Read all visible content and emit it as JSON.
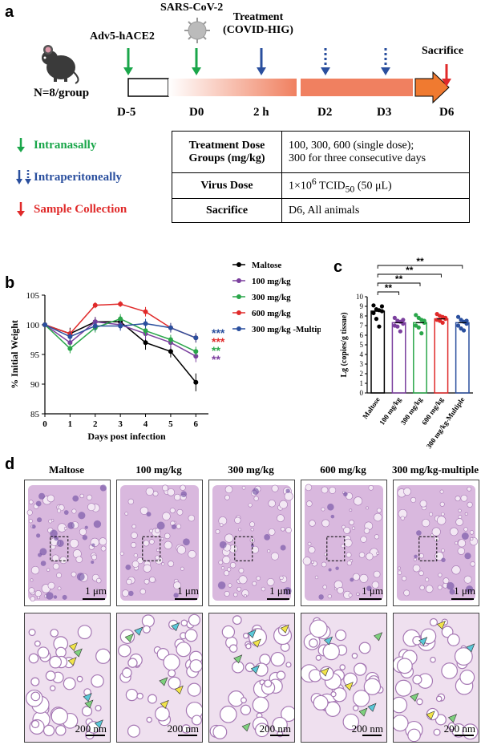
{
  "panel_a": {
    "letter": "a",
    "group_label": "N=8/group",
    "events": [
      {
        "name": "Adv5-hACE2",
        "day": "D-5",
        "color": "#1aa64a",
        "style": "solid"
      },
      {
        "name": "SARS-CoV-2",
        "day": "D0",
        "color": "#1aa64a",
        "style": "solid"
      },
      {
        "name": "Treatment (COVID-HIG)",
        "day": "2 h",
        "color": "#2a4f9e",
        "style": "solid"
      },
      {
        "name": "",
        "day": "D2",
        "color": "#2a4f9e",
        "style": "dotted"
      },
      {
        "name": "",
        "day": "D3",
        "color": "#2a4f9e",
        "style": "dotted"
      },
      {
        "name": "Sacrifice",
        "day": "D6",
        "color": "#e02a2a",
        "style": "solid"
      }
    ],
    "adv_label": "Adv5-hACE2",
    "sars_label": "SARS-CoV-2",
    "treat_label_1": "Treatment",
    "treat_label_2": "(COVID-HIG)",
    "sacrifice_label": "Sacrifice",
    "days": [
      "D-5",
      "D0",
      "2 h",
      "D2",
      "D3",
      "D6"
    ],
    "legend": [
      {
        "label": "Intranasally",
        "color": "#1aa64a"
      },
      {
        "label": "Intraperitoneally",
        "color": "#2a4f9e"
      },
      {
        "label": "Sample Collection",
        "color": "#e02a2a"
      }
    ],
    "table": {
      "r1h1": "Treatment Dose",
      "r1h2": "Groups (mg/kg)",
      "r1v1": "100, 300, 600 (single dose);",
      "r1v2": "300 for three consecutive days",
      "r2h": "Virus Dose",
      "r2v_a": "1×10",
      "r2v_sup": "6",
      "r2v_b": " TCID",
      "r2v_sub": "50",
      "r2v_c": " (50 μL)",
      "r3h": "Sacrifice",
      "r3v": "D6, All animals"
    }
  },
  "panel_b": {
    "letter": "b",
    "chart_data": {
      "type": "line",
      "title": "",
      "xlabel": "Days post infection",
      "ylabel": "% Initial Weight",
      "x": [
        0,
        1,
        2,
        3,
        4,
        5,
        6
      ],
      "xlim": [
        0,
        6.5
      ],
      "ylim": [
        85,
        105
      ],
      "yticks": [
        85,
        90,
        95,
        100,
        105
      ],
      "series": [
        {
          "name": "Maltose",
          "color": "#000000",
          "values": [
            100,
            98.5,
            100.5,
            100.5,
            97,
            95.5,
            90.3
          ],
          "errors": [
            0,
            1,
            0.8,
            1,
            1.2,
            1,
            1.5
          ]
        },
        {
          "name": "100 mg/kg",
          "color": "#7b3f9e",
          "values": [
            100,
            97,
            100.5,
            100,
            98.5,
            97,
            94.7
          ],
          "errors": [
            0,
            1,
            0.8,
            0.8,
            1,
            1,
            1
          ]
        },
        {
          "name": "300 mg/kg",
          "color": "#2aa64a",
          "values": [
            100,
            96,
            99.5,
            101,
            99,
            97.5,
            95.5
          ],
          "errors": [
            0,
            0.8,
            0.8,
            0.8,
            0.8,
            0.8,
            0.8
          ]
        },
        {
          "name": "600 mg/kg",
          "color": "#e02a2a",
          "values": [
            100,
            98.5,
            103.3,
            103.5,
            102.2,
            99.5,
            97.8
          ],
          "errors": [
            0,
            0.8,
            0.5,
            0.5,
            0.8,
            0.8,
            0.8
          ]
        },
        {
          "name": "300 mg/kg -Multiple",
          "color": "#2a4f9e",
          "values": [
            100,
            98,
            99.8,
            99.8,
            100.2,
            99.5,
            97.8
          ],
          "errors": [
            0,
            0.8,
            0.8,
            0.8,
            0.8,
            0.8,
            0.8
          ]
        }
      ],
      "significance": [
        {
          "text": "***",
          "color": "#2a4f9e"
        },
        {
          "text": "***",
          "color": "#e02a2a"
        },
        {
          "text": "**",
          "color": "#2aa64a"
        },
        {
          "text": "**",
          "color": "#7b3f9e"
        }
      ]
    }
  },
  "panel_c": {
    "letter": "c",
    "chart_data": {
      "type": "bar",
      "ylabel": "Lg (copies/g tissue)",
      "ylim": [
        0,
        10
      ],
      "yticks": [
        0,
        1,
        2,
        3,
        4,
        5,
        6,
        7,
        8,
        9,
        10
      ],
      "categories": [
        "Maltose",
        "100 mg/kg",
        "300 mg/kg",
        "600 mg/kg",
        "300 mg/kg-Multiple"
      ],
      "values": [
        8.5,
        7.3,
        7.3,
        7.7,
        7.3
      ],
      "colors": [
        "#000000",
        "#7b3f9e",
        "#2aa64a",
        "#e02a2a",
        "#2a4f9e"
      ],
      "points": [
        [
          9.1,
          8.7,
          8.6,
          8.5,
          8.3,
          7.7,
          6.9,
          9.0
        ],
        [
          7.8,
          7.5,
          7.4,
          7.2,
          7.0,
          6.9,
          6.4,
          7.6
        ],
        [
          8.1,
          7.8,
          7.6,
          7.3,
          7.0,
          6.8,
          6.2,
          7.5
        ],
        [
          8.2,
          8.0,
          7.9,
          7.7,
          7.6,
          7.5,
          7.3,
          7.8
        ],
        [
          7.9,
          7.6,
          7.4,
          7.2,
          7.0,
          6.7,
          6.5,
          7.5
        ]
      ],
      "brackets": [
        {
          "from": 0,
          "to": 1,
          "label": "**"
        },
        {
          "from": 0,
          "to": 2,
          "label": "**"
        },
        {
          "from": 0,
          "to": 3,
          "label": "**"
        },
        {
          "from": 0,
          "to": 4,
          "label": "**"
        }
      ]
    }
  },
  "panel_d": {
    "letter": "d",
    "columns": [
      "Maltose",
      "100 mg/kg",
      "300 mg/kg",
      "600 mg/kg",
      "300 mg/kg-multiple"
    ],
    "scale_low": "1 μm",
    "scale_high": "200 nm"
  }
}
